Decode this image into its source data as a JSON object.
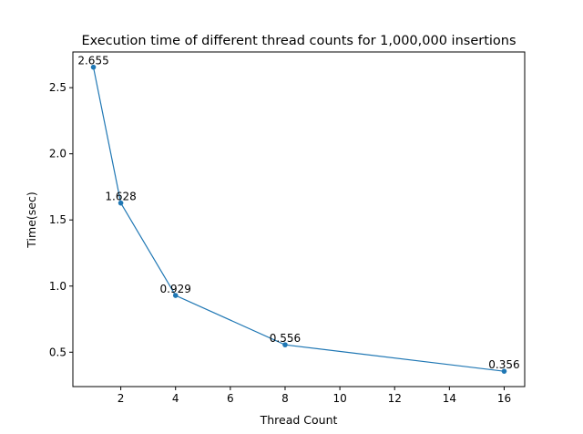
{
  "chart_data": {
    "type": "line",
    "title": "Execution time of different thread counts for 1,000,000 insertions",
    "xlabel": "Thread Count",
    "ylabel": "Time(sec)",
    "xlim": [
      0.25,
      16.75
    ],
    "ylim": [
      0.24,
      2.77
    ],
    "xticks": [
      2,
      4,
      6,
      8,
      10,
      12,
      14,
      16
    ],
    "xtick_labels": [
      "2",
      "4",
      "6",
      "8",
      "10",
      "12",
      "14",
      "16"
    ],
    "yticks": [
      0.5,
      1.0,
      1.5,
      2.0,
      2.5
    ],
    "ytick_labels": [
      "0.5",
      "1.0",
      "1.5",
      "2.0",
      "2.5"
    ],
    "grid": false,
    "series": [
      {
        "color": "#1f77b4",
        "x": [
          1,
          2,
          4,
          8,
          16
        ],
        "y": [
          2.655,
          1.628,
          0.929,
          0.556,
          0.356
        ],
        "data_labels": [
          "2.655",
          "1.628",
          "0.929",
          "0.556",
          "0.356"
        ]
      }
    ]
  }
}
